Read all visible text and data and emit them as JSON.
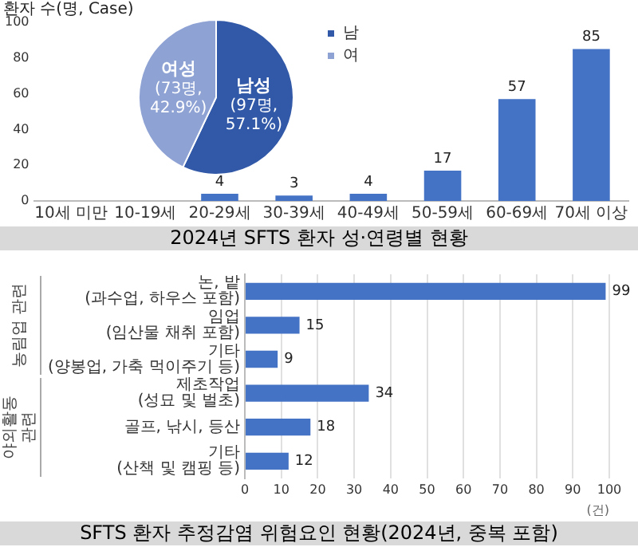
{
  "chart_data": [
    {
      "type": "bar",
      "title": "2024년 SFTS 환자 성·연령별 현황",
      "ylabel": "환자 수(명, Case)",
      "categories": [
        "10세 미만",
        "10-19세",
        "20-29세",
        "30-39세",
        "40-49세",
        "50-59세",
        "60-69세",
        "70세 이상"
      ],
      "values": [
        null,
        null,
        4,
        3,
        4,
        17,
        57,
        85
      ],
      "color": "#4472c4",
      "ylim": [
        0,
        100
      ],
      "yticks": [
        0,
        20,
        40,
        60,
        80,
        100
      ],
      "data_labels": true,
      "grid": false
    },
    {
      "type": "pie",
      "categories": [
        "남",
        "여"
      ],
      "values": [
        97,
        73
      ],
      "colors": [
        "#3259a8",
        "#8ea2d4"
      ],
      "value_labels": [
        "남성\n(97명,\n57.1%)",
        "여성\n(73명,\n42.9%)"
      ],
      "legend": "right"
    },
    {
      "type": "bar",
      "orientation": "horizontal",
      "title": "SFTS 환자 추정감염 위험요인 현황(2024년, 중복 포함)",
      "xlabel": "(건)",
      "categories": [
        "논, 밭(과수업, 하우스 포함)",
        "임업(임산물 채취 포함)",
        "기타(양봉업, 가축 먹이주기 등)",
        "제초작업(성묘 및 벌초)",
        "골프, 낚시, 등산",
        "기타(산책 및 캠핑 등)"
      ],
      "values": [
        99,
        15,
        9,
        34,
        18,
        12
      ],
      "color": "#4472c4",
      "xlim": [
        0,
        100
      ],
      "xticks": [
        0,
        10,
        20,
        30,
        40,
        50,
        60,
        70,
        80,
        90,
        100
      ],
      "grid": "x",
      "data_labels": true,
      "annotations": [
        "농림업 관련",
        "야외활동 관련"
      ]
    }
  ]
}
